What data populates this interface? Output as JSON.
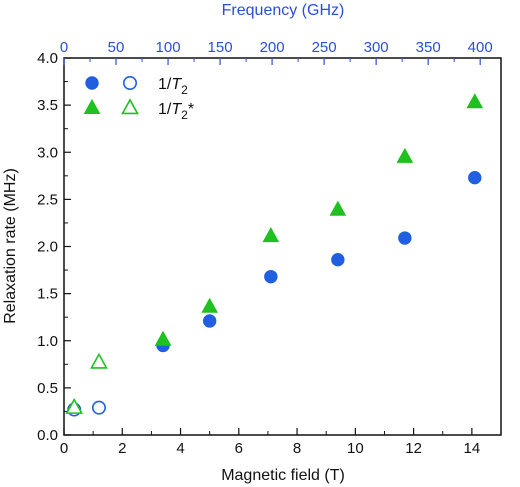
{
  "chart_data": {
    "type": "scatter",
    "xlabel": "Magnetic field (T)",
    "ylabel": "Relaxation rate (MHz)",
    "top_xlabel": "Frequency (GHz)",
    "xlim": [
      0,
      15
    ],
    "ylim": [
      0,
      4.0
    ],
    "top_xlim": [
      0,
      420
    ],
    "x_ticks": [
      0,
      2,
      4,
      6,
      8,
      10,
      12,
      14
    ],
    "y_ticks": [
      "0.0",
      "0.5",
      "1.0",
      "1.5",
      "2.0",
      "2.5",
      "3.0",
      "3.5",
      "4.0"
    ],
    "top_x_ticks": [
      0,
      50,
      100,
      150,
      200,
      250,
      300,
      350,
      400
    ],
    "grid": false,
    "legend_position": "top-left",
    "colors": {
      "T2": "#1f5fe0",
      "T2star": "#1fc01f",
      "top_axis": "#2a4fd8",
      "axis": "#111111"
    },
    "series": [
      {
        "name": "1/T2",
        "legend_prefix": "1/",
        "legend_italic": "T",
        "legend_sub": "2",
        "legend_suffix": "",
        "marker": "circle",
        "points": [
          {
            "x": 0.35,
            "y": 0.27,
            "filled": false
          },
          {
            "x": 1.2,
            "y": 0.29,
            "filled": false
          },
          {
            "x": 3.4,
            "y": 0.95,
            "filled": true
          },
          {
            "x": 5.0,
            "y": 1.21,
            "filled": true
          },
          {
            "x": 7.1,
            "y": 1.68,
            "filled": true
          },
          {
            "x": 9.4,
            "y": 1.86,
            "filled": true
          },
          {
            "x": 11.7,
            "y": 2.09,
            "filled": true
          },
          {
            "x": 14.1,
            "y": 2.73,
            "filled": true
          }
        ]
      },
      {
        "name": "1/T2*",
        "legend_prefix": "1/",
        "legend_italic": "T",
        "legend_sub": "2",
        "legend_suffix": "*",
        "marker": "triangle",
        "points": [
          {
            "x": 0.35,
            "y": 0.29,
            "filled": false
          },
          {
            "x": 1.2,
            "y": 0.77,
            "filled": false
          },
          {
            "x": 3.4,
            "y": 1.01,
            "filled": true
          },
          {
            "x": 5.0,
            "y": 1.36,
            "filled": true
          },
          {
            "x": 7.1,
            "y": 2.11,
            "filled": true
          },
          {
            "x": 9.4,
            "y": 2.39,
            "filled": true
          },
          {
            "x": 11.7,
            "y": 2.95,
            "filled": true
          },
          {
            "x": 14.1,
            "y": 3.53,
            "filled": true
          }
        ]
      }
    ]
  }
}
